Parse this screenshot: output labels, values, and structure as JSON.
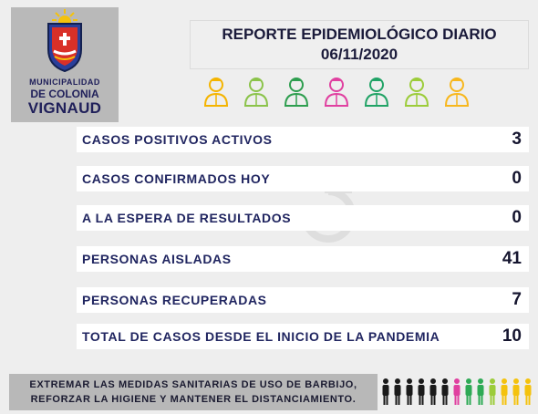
{
  "logo": {
    "line1": "MUNICIPALIDAD",
    "line2": "DE COLONIA",
    "line3": "VIGNAUD"
  },
  "report": {
    "title": "REPORTE EPIDEMIOLÓGICO DIARIO",
    "date": "06/11/2020"
  },
  "workers": [
    {
      "icon": "businessman-icon",
      "color": "#f4b400"
    },
    {
      "icon": "soldier-icon",
      "color": "#8bc34a"
    },
    {
      "icon": "firefighter-icon",
      "color": "#2e9e4f"
    },
    {
      "icon": "nurse-icon",
      "color": "#e040a0"
    },
    {
      "icon": "doctor-icon",
      "color": "#21a366"
    },
    {
      "icon": "farmer-icon",
      "color": "#9ccc3a"
    },
    {
      "icon": "worker-icon",
      "color": "#f7b71d"
    }
  ],
  "stats": [
    {
      "label": "CASOS POSITIVOS ACTIVOS",
      "value": "3"
    },
    {
      "label": "CASOS CONFIRMADOS HOY",
      "value": "0"
    },
    {
      "label": "A LA ESPERA DE RESULTADOS",
      "value": "0"
    },
    {
      "label": "PERSONAS AISLADAS",
      "value": "41"
    },
    {
      "label": "PERSONAS RECUPERADAS",
      "value": "7"
    },
    {
      "label": "TOTAL DE CASOS DESDE EL INICIO DE LA PANDEMIA",
      "value": "10"
    }
  ],
  "footer": {
    "line1": "EXTREMAR LAS MEDIDAS SANITARIAS DE USO DE BARBIJO,",
    "line2": "REFORZAR LA HIGIENE Y MANTENER EL DISTANCIAMIENTO."
  },
  "people_colors": [
    "#1a1a1a",
    "#1a1a1a",
    "#1a1a1a",
    "#1a1a1a",
    "#1a1a1a",
    "#1a1a1a",
    "#e040a0",
    "#2eaa55",
    "#2eaa55",
    "#9ccc3a",
    "#f4c20d",
    "#f4c20d",
    "#f4c20d"
  ]
}
